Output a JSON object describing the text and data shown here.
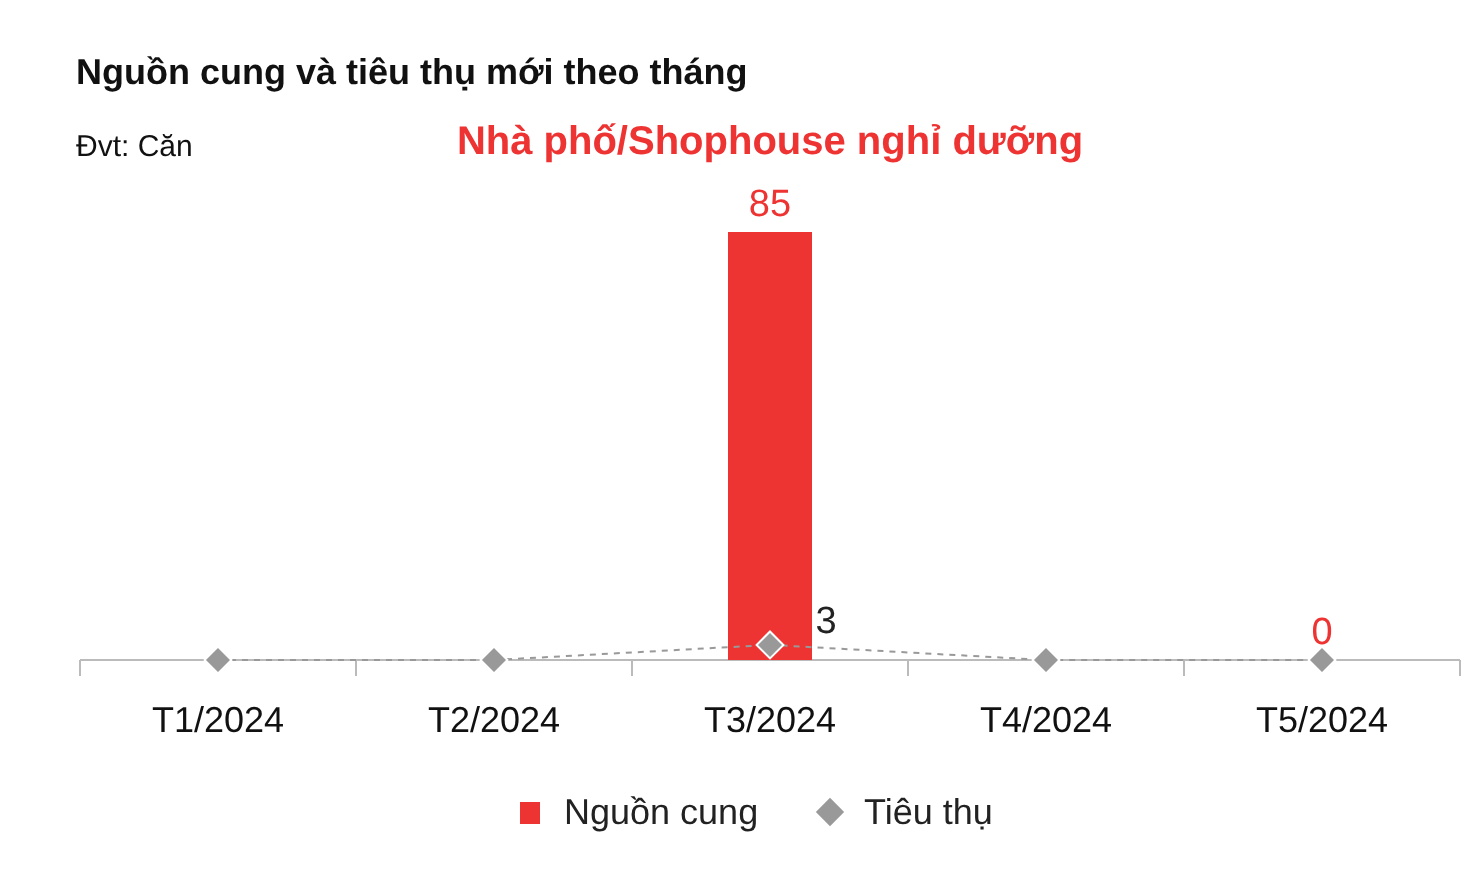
{
  "chart_data": {
    "type": "bar",
    "title": "Nguồn cung và tiêu thụ mới theo tháng",
    "subtitle": "Nhà phố/Shophouse nghỉ dưỡng",
    "annotations": [
      "Đvt: Căn"
    ],
    "categories": [
      "T1/2024",
      "T2/2024",
      "T3/2024",
      "T4/2024",
      "T5/2024"
    ],
    "series": [
      {
        "name": "Nguồn cung",
        "color": "#ee3433",
        "values": [
          0,
          0,
          85,
          0,
          0
        ],
        "value_labels": [
          null,
          null,
          "85",
          null,
          "0"
        ]
      },
      {
        "name": "Tiêu thụ",
        "type": "line",
        "color": "#999999",
        "values": [
          0,
          0,
          3,
          0,
          0
        ],
        "value_labels": [
          null,
          null,
          "3",
          null,
          null
        ],
        "marker": "diamond",
        "line_style": "dashed"
      }
    ],
    "legend": "bottom"
  }
}
